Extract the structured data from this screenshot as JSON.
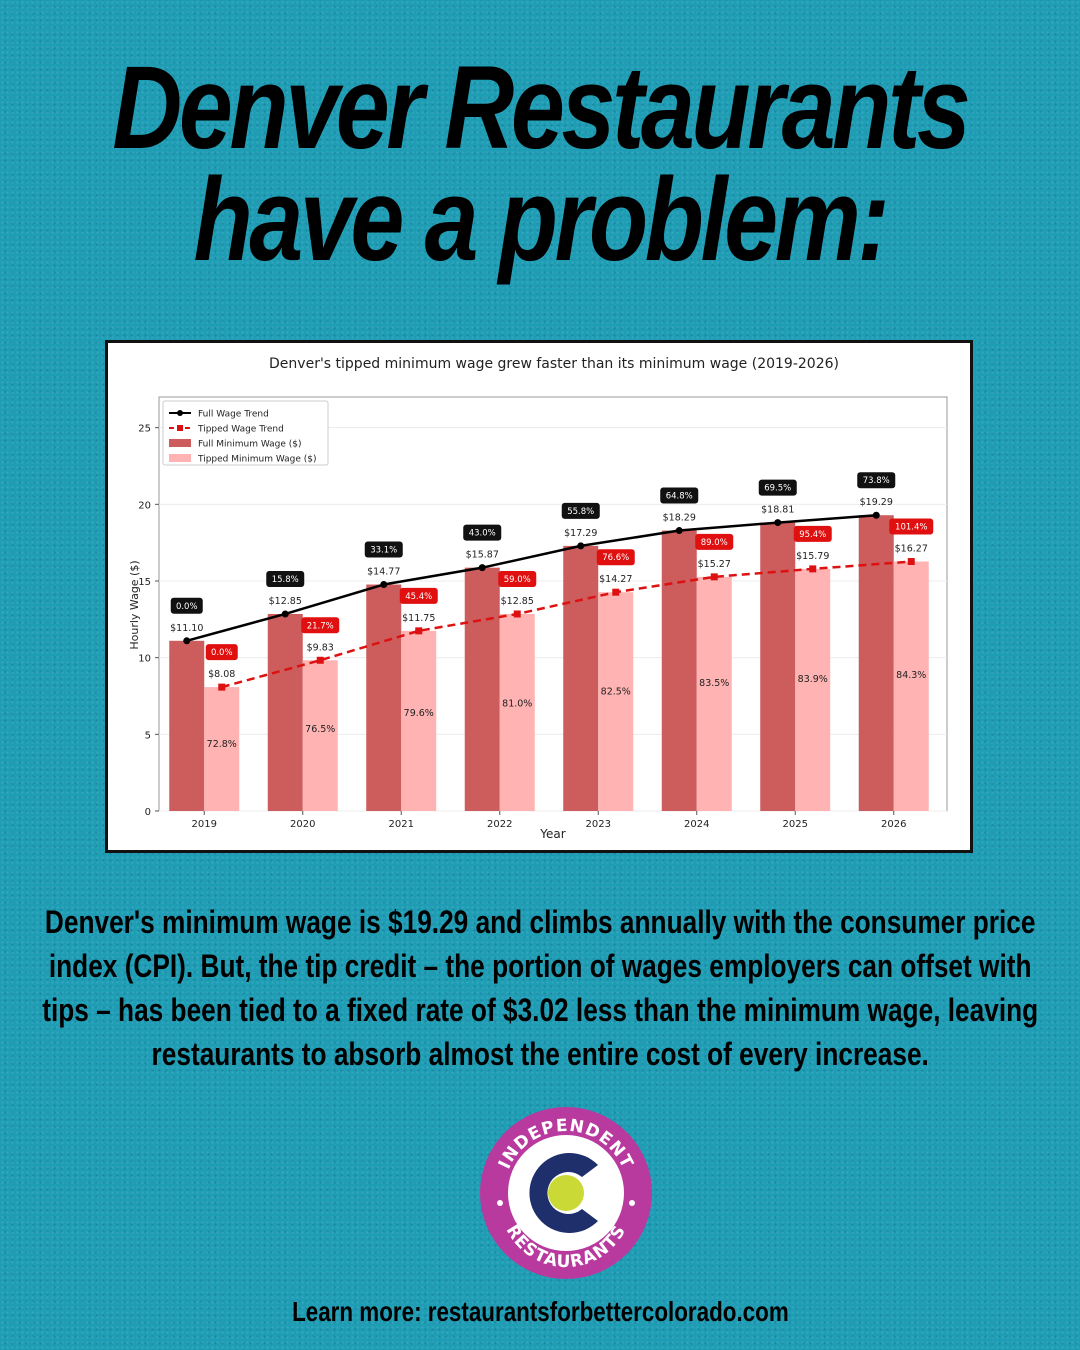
{
  "headline": {
    "line1": "Denver Restaurants",
    "line2": "have a problem:"
  },
  "chart_data": {
    "type": "bar",
    "title": "Denver's tipped minimum wage grew faster than its minimum wage (2019-2026)",
    "xlabel": "Year",
    "ylabel": "Hourly Wage ($)",
    "ylim": [
      0,
      27
    ],
    "yticks": [
      0,
      5,
      10,
      15,
      20,
      25
    ],
    "grid": true,
    "legend_position": "top-left",
    "categories": [
      "2019",
      "2020",
      "2021",
      "2022",
      "2023",
      "2024",
      "2025",
      "2026"
    ],
    "series": [
      {
        "name": "Full Minimum Wage ($)",
        "values": [
          11.1,
          12.85,
          14.77,
          15.87,
          17.29,
          18.29,
          18.81,
          19.29
        ],
        "value_labels": [
          "$11.10",
          "$12.85",
          "$14.77",
          "$15.87",
          "$17.29",
          "$18.29",
          "$18.81",
          "$19.29"
        ],
        "growth_labels": [
          "0.0%",
          "15.8%",
          "33.1%",
          "43.0%",
          "55.8%",
          "64.8%",
          "69.5%",
          "73.8%"
        ],
        "color": "#cd5c5c"
      },
      {
        "name": "Tipped Minimum Wage ($)",
        "values": [
          8.08,
          9.83,
          11.75,
          12.85,
          14.27,
          15.27,
          15.79,
          16.27
        ],
        "value_labels": [
          "$8.08",
          "$9.83",
          "$11.75",
          "$12.85",
          "$14.27",
          "$15.27",
          "$15.79",
          "$16.27"
        ],
        "growth_labels": [
          "0.0%",
          "21.7%",
          "45.4%",
          "59.0%",
          "76.6%",
          "89.0%",
          "95.4%",
          "101.4%"
        ],
        "ratio_labels": [
          "72.8%",
          "76.5%",
          "79.6%",
          "81.0%",
          "82.5%",
          "83.5%",
          "83.9%",
          "84.3%"
        ],
        "color": "#ffb3b3"
      }
    ],
    "trend_lines": [
      {
        "name": "Full Wage Trend",
        "color": "#000000",
        "style": "solid"
      },
      {
        "name": "Tipped Wage Trend",
        "color": "#dd1111",
        "style": "dashed"
      }
    ]
  },
  "body_text": "Denver's minimum wage is $19.29 and climbs annually with the consumer price index (CPI). But, the tip credit – the portion of wages employers can offset with tips – has been tied to a fixed rate of $3.02 less than the minimum wage, leaving restaurants to absorb almost the entire cost of every increase.",
  "logo": {
    "top_text": "INDEPENDENT",
    "bottom_text": "RESTAURANTS",
    "ring_color": "#b83a9e",
    "c_color": "#1e2f6b",
    "dot_color": "#cbd937"
  },
  "footer": "Learn more: restaurantsforbettercolorado.com"
}
